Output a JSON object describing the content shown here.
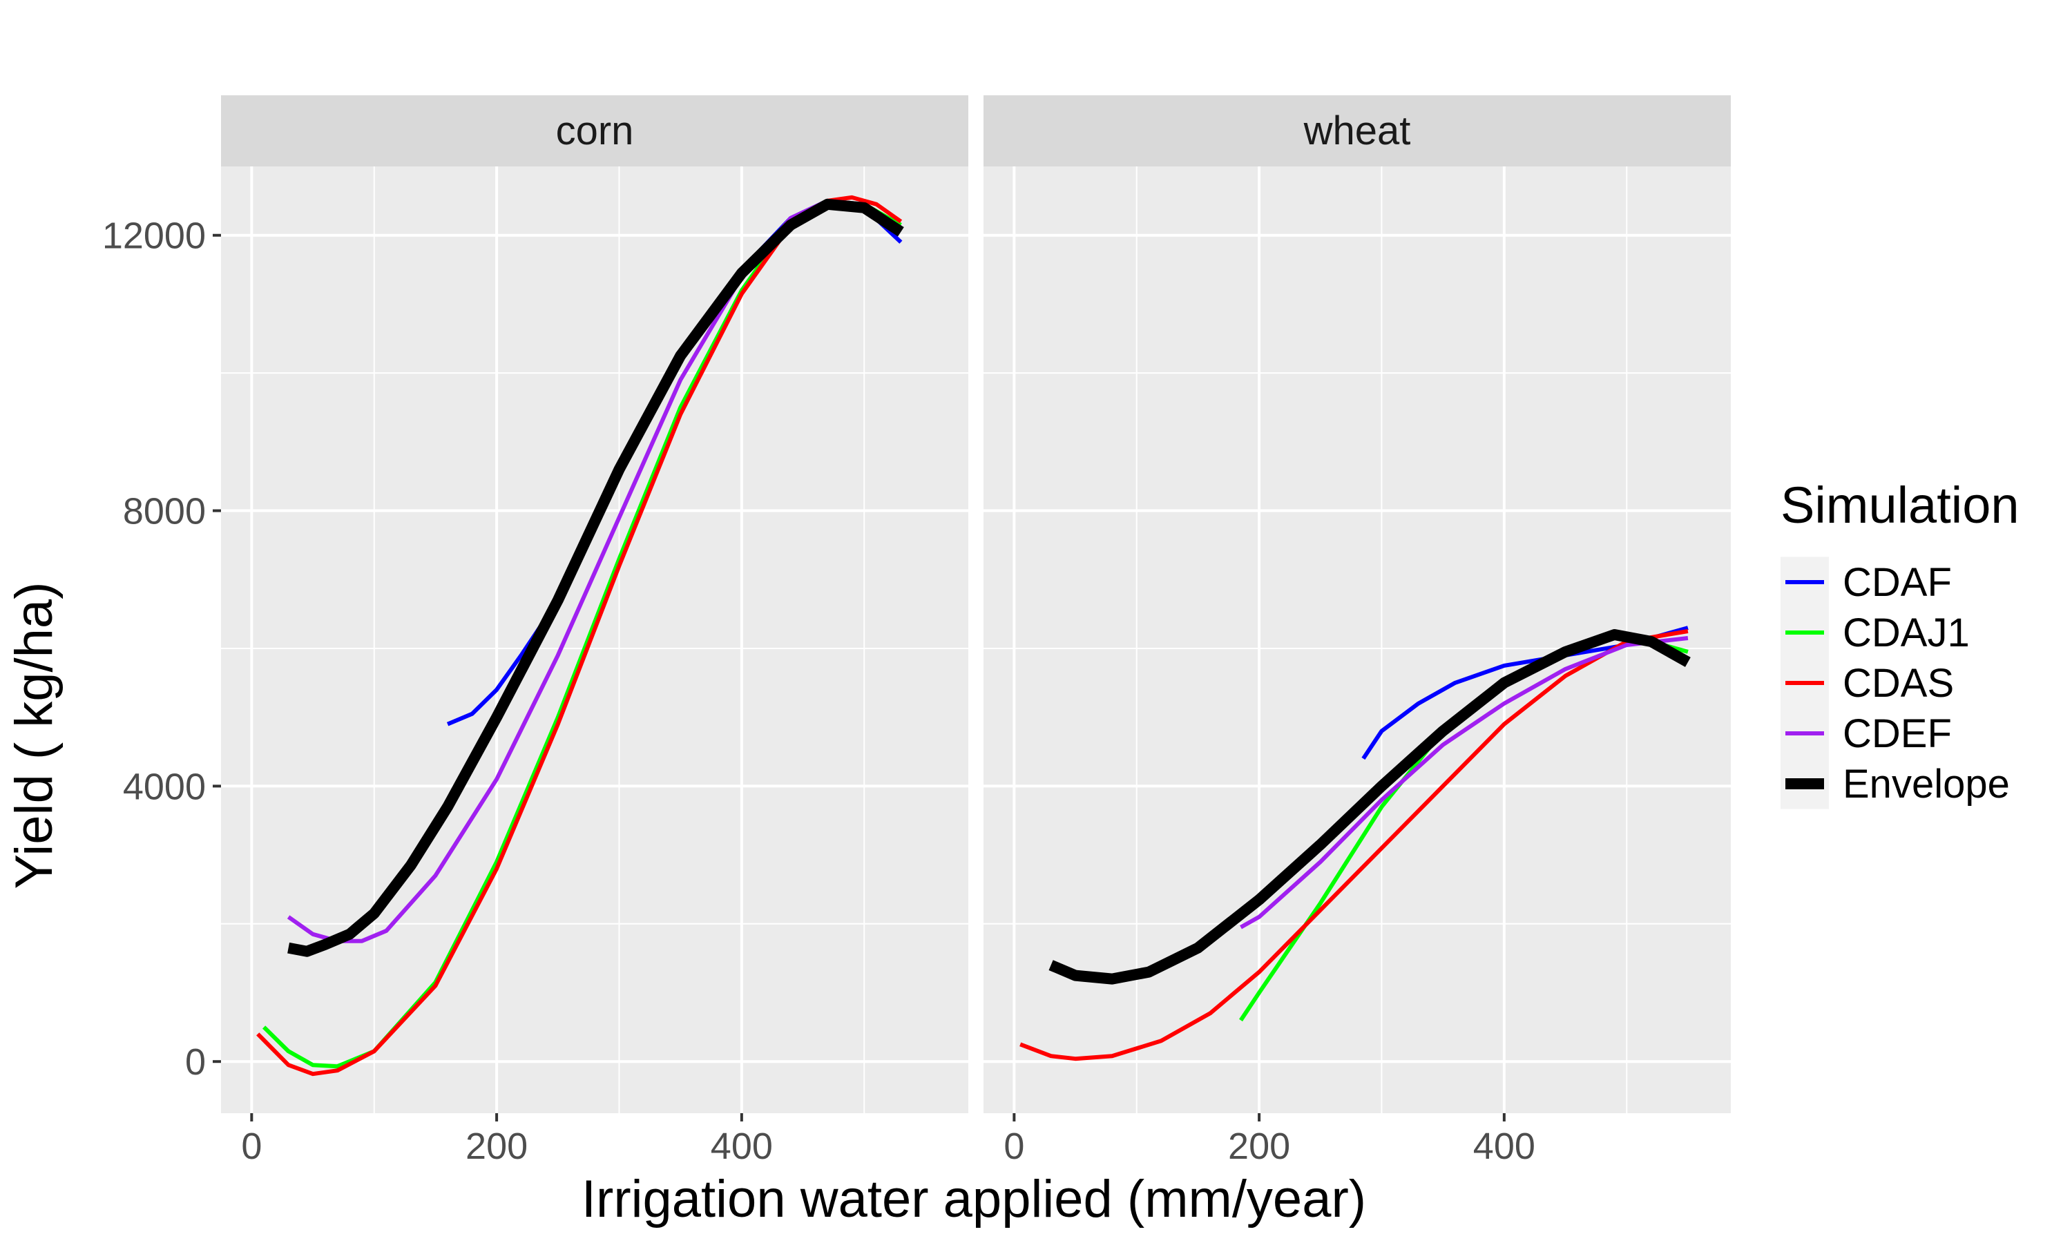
{
  "chart_data": {
    "type": "line",
    "facets": [
      "corn",
      "wheat"
    ],
    "xlabel": "Irrigation water applied (mm/year)",
    "ylabel": "Yield ( kg/ha)",
    "xlim": [
      -25,
      585
    ],
    "ylim": [
      -750,
      13000
    ],
    "x_ticks": [
      0,
      200,
      400
    ],
    "y_ticks": [
      0,
      4000,
      8000,
      12000
    ],
    "grid": true,
    "legend": {
      "title": "Simulation",
      "position": "right"
    },
    "series": [
      {
        "name": "CDAF",
        "color": "#0000ff",
        "width": 6,
        "data": {
          "corn": [
            [
              160,
              4900
            ],
            [
              180,
              5050
            ],
            [
              200,
              5400
            ],
            [
              220,
              5900
            ],
            [
              250,
              6700
            ],
            [
              300,
              8600
            ],
            [
              350,
              10300
            ],
            [
              400,
              11500
            ],
            [
              440,
              12250
            ],
            [
              470,
              12500
            ],
            [
              500,
              12400
            ],
            [
              530,
              11900
            ]
          ],
          "wheat": [
            [
              285,
              4400
            ],
            [
              300,
              4800
            ],
            [
              330,
              5200
            ],
            [
              360,
              5500
            ],
            [
              400,
              5750
            ],
            [
              450,
              5900
            ],
            [
              500,
              6050
            ],
            [
              550,
              6300
            ]
          ]
        }
      },
      {
        "name": "CDAJ1",
        "color": "#00ff00",
        "width": 6,
        "data": {
          "corn": [
            [
              10,
              500
            ],
            [
              30,
              150
            ],
            [
              50,
              -50
            ],
            [
              70,
              -70
            ],
            [
              100,
              150
            ],
            [
              150,
              1150
            ],
            [
              200,
              2900
            ],
            [
              250,
              5000
            ],
            [
              300,
              7300
            ],
            [
              350,
              9500
            ],
            [
              400,
              11200
            ],
            [
              440,
              12200
            ],
            [
              470,
              12500
            ],
            [
              500,
              12450
            ],
            [
              530,
              12150
            ]
          ],
          "wheat": [
            [
              185,
              600
            ],
            [
              200,
              1000
            ],
            [
              250,
              2300
            ],
            [
              300,
              3700
            ],
            [
              350,
              4800
            ],
            [
              400,
              5550
            ],
            [
              450,
              6000
            ],
            [
              500,
              6200
            ],
            [
              550,
              5950
            ]
          ]
        }
      },
      {
        "name": "CDAS",
        "color": "#ff0000",
        "width": 6,
        "data": {
          "corn": [
            [
              5,
              400
            ],
            [
              30,
              -50
            ],
            [
              50,
              -180
            ],
            [
              70,
              -130
            ],
            [
              100,
              150
            ],
            [
              150,
              1100
            ],
            [
              200,
              2800
            ],
            [
              250,
              4900
            ],
            [
              300,
              7200
            ],
            [
              350,
              9400
            ],
            [
              400,
              11150
            ],
            [
              440,
              12150
            ],
            [
              470,
              12500
            ],
            [
              490,
              12550
            ],
            [
              510,
              12450
            ],
            [
              530,
              12200
            ]
          ],
          "wheat": [
            [
              5,
              250
            ],
            [
              30,
              80
            ],
            [
              50,
              40
            ],
            [
              80,
              80
            ],
            [
              120,
              300
            ],
            [
              160,
              700
            ],
            [
              200,
              1300
            ],
            [
              250,
              2200
            ],
            [
              300,
              3100
            ],
            [
              350,
              4000
            ],
            [
              400,
              4900
            ],
            [
              450,
              5600
            ],
            [
              500,
              6100
            ],
            [
              550,
              6250
            ]
          ]
        }
      },
      {
        "name": "CDEF",
        "color": "#a020f0",
        "width": 6,
        "data": {
          "corn": [
            [
              30,
              2100
            ],
            [
              50,
              1850
            ],
            [
              70,
              1750
            ],
            [
              90,
              1750
            ],
            [
              110,
              1900
            ],
            [
              150,
              2700
            ],
            [
              200,
              4100
            ],
            [
              250,
              5900
            ],
            [
              300,
              7900
            ],
            [
              350,
              9900
            ],
            [
              400,
              11400
            ],
            [
              440,
              12250
            ],
            [
              470,
              12500
            ],
            [
              500,
              12450
            ],
            [
              530,
              12100
            ]
          ],
          "wheat": [
            [
              185,
              1950
            ],
            [
              200,
              2100
            ],
            [
              250,
              2900
            ],
            [
              300,
              3800
            ],
            [
              350,
              4600
            ],
            [
              400,
              5200
            ],
            [
              450,
              5700
            ],
            [
              500,
              6050
            ],
            [
              550,
              6150
            ]
          ]
        }
      },
      {
        "name": "Envelope",
        "color": "#000000",
        "width": 16,
        "data": {
          "corn": [
            [
              30,
              1650
            ],
            [
              45,
              1600
            ],
            [
              60,
              1700
            ],
            [
              80,
              1850
            ],
            [
              100,
              2150
            ],
            [
              130,
              2850
            ],
            [
              160,
              3700
            ],
            [
              200,
              5000
            ],
            [
              250,
              6700
            ],
            [
              300,
              8600
            ],
            [
              350,
              10250
            ],
            [
              400,
              11450
            ],
            [
              440,
              12150
            ],
            [
              470,
              12450
            ],
            [
              500,
              12400
            ],
            [
              530,
              12050
            ]
          ],
          "wheat": [
            [
              30,
              1400
            ],
            [
              50,
              1250
            ],
            [
              80,
              1200
            ],
            [
              110,
              1300
            ],
            [
              150,
              1650
            ],
            [
              200,
              2350
            ],
            [
              250,
              3150
            ],
            [
              300,
              4000
            ],
            [
              350,
              4800
            ],
            [
              400,
              5500
            ],
            [
              450,
              5950
            ],
            [
              490,
              6200
            ],
            [
              520,
              6100
            ],
            [
              550,
              5800
            ]
          ]
        }
      }
    ]
  }
}
